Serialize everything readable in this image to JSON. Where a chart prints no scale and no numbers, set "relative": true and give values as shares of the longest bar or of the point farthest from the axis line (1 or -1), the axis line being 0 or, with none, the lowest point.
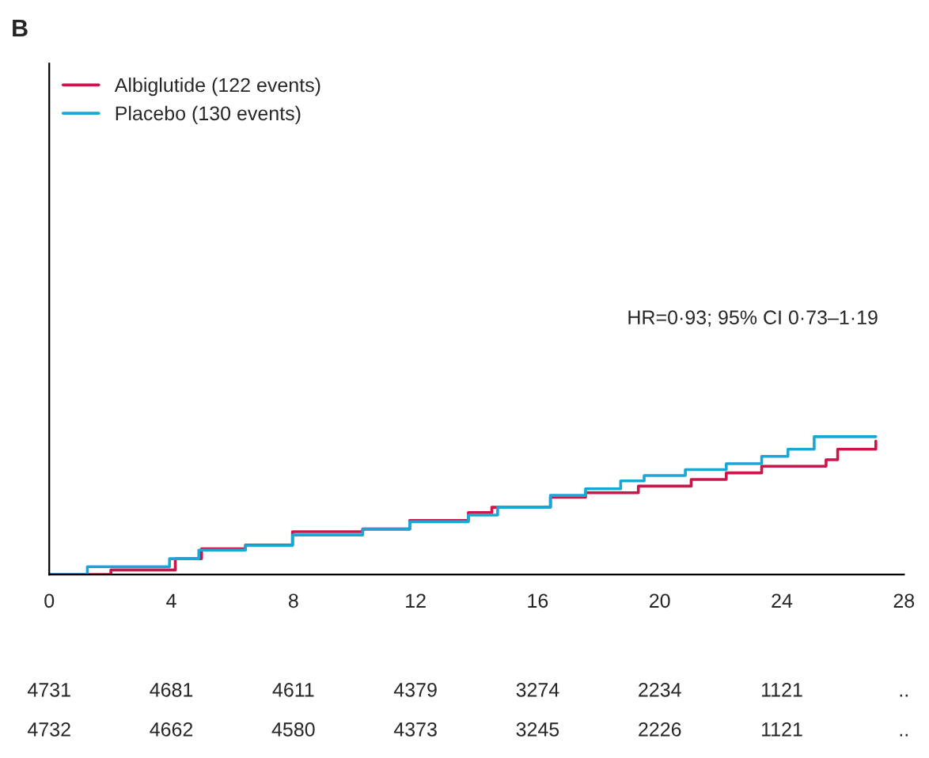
{
  "chart_data": {
    "type": "step",
    "title": "B",
    "relative": true,
    "xlim": [
      0,
      28
    ],
    "xticks": [
      0,
      4,
      8,
      12,
      16,
      20,
      24,
      28
    ],
    "legend": "top left",
    "grid": false,
    "annotations": [
      "HR=0·93; 95% CI 0·73–1·19",
      "4731 4681 4611 4379 3274 2234 1121 ..",
      "4732 4662 4580 4373 3245 2226 1121 .."
    ],
    "series": [
      {
        "name": "Albiglutide (122 events)",
        "color": "#c8174a",
        "x": [
          0,
          2.02,
          4.13,
          4.99,
          6.43,
          7.97,
          10.27,
          11.81,
          13.73,
          14.5,
          16.42,
          17.57,
          19.3,
          21.03,
          22.18,
          23.34,
          25.45,
          25.83,
          27.08
        ],
        "values": [
          0,
          0.033,
          0.115,
          0.187,
          0.215,
          0.311,
          0.33,
          0.392,
          0.45,
          0.488,
          0.56,
          0.593,
          0.641,
          0.689,
          0.737,
          0.785,
          0.833,
          0.909,
          0.967
        ]
      },
      {
        "name": "Placebo (130 events)",
        "color": "#1aa7d6",
        "x": [
          0,
          1.25,
          3.94,
          4.9,
          6.43,
          7.97,
          10.27,
          11.81,
          13.73,
          14.69,
          16.42,
          17.57,
          18.72,
          19.49,
          20.84,
          22.18,
          23.34,
          24.2,
          25.06,
          27.08
        ],
        "values": [
          0,
          0.057,
          0.115,
          0.177,
          0.211,
          0.287,
          0.33,
          0.383,
          0.431,
          0.488,
          0.574,
          0.622,
          0.679,
          0.718,
          0.761,
          0.804,
          0.857,
          0.909,
          1.0,
          1.0
        ]
      }
    ]
  }
}
